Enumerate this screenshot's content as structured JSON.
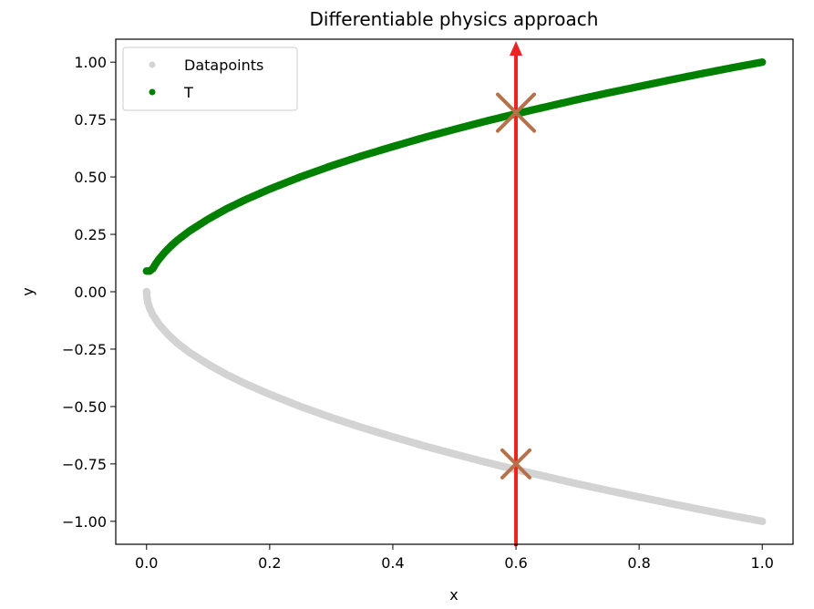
{
  "chart_data": {
    "type": "scatter",
    "title": "Differentiable physics approach",
    "xlabel": "x",
    "ylabel": "y",
    "xlim": [
      -0.05,
      1.05
    ],
    "ylim": [
      -1.1,
      1.1
    ],
    "xticks": [
      "0.0",
      "0.2",
      "0.4",
      "0.6",
      "0.8",
      "1.0"
    ],
    "yticks": [
      "1.00",
      "0.75",
      "0.50",
      "0.25",
      "0.00",
      "−0.25",
      "−0.50",
      "−0.75",
      "−1.00"
    ],
    "grid": false,
    "legend": {
      "placement": "top-left",
      "entries": [
        "Datapoints",
        "T"
      ]
    },
    "series": [
      {
        "name": "Datapoints",
        "color": "#d3d3d3",
        "x": [
          0,
          0.0005,
          0.002,
          0.005,
          0.01,
          0.02,
          0.035,
          0.05,
          0.07,
          0.1,
          0.13,
          0.16,
          0.2,
          0.25,
          0.3,
          0.35,
          0.4,
          0.45,
          0.5,
          0.55,
          0.6,
          0.65,
          0.7,
          0.75,
          0.8,
          0.85,
          0.9,
          0.95,
          1.0
        ],
        "y": [
          0,
          -0.022,
          -0.045,
          -0.071,
          -0.1,
          -0.141,
          -0.187,
          -0.224,
          -0.265,
          -0.316,
          -0.361,
          -0.4,
          -0.447,
          -0.5,
          -0.548,
          -0.592,
          -0.632,
          -0.671,
          -0.707,
          -0.742,
          -0.775,
          -0.806,
          -0.837,
          -0.866,
          -0.894,
          -0.922,
          -0.949,
          -0.975,
          -1.0
        ]
      },
      {
        "name": "T",
        "color": "#008000",
        "x": [
          0,
          0.005,
          0.01,
          0.015,
          0.02,
          0.03,
          0.04,
          0.05,
          0.07,
          0.1,
          0.13,
          0.16,
          0.2,
          0.25,
          0.3,
          0.35,
          0.4,
          0.45,
          0.5,
          0.55,
          0.6,
          0.65,
          0.7,
          0.75,
          0.8,
          0.85,
          0.9,
          0.95,
          1.0
        ],
        "y": [
          0.09,
          0.09,
          0.1,
          0.122,
          0.141,
          0.173,
          0.2,
          0.224,
          0.265,
          0.316,
          0.361,
          0.4,
          0.447,
          0.5,
          0.548,
          0.592,
          0.632,
          0.671,
          0.707,
          0.742,
          0.775,
          0.806,
          0.837,
          0.866,
          0.894,
          0.922,
          0.949,
          0.975,
          1.0
        ]
      }
    ],
    "annotations": {
      "vertical_arrow": {
        "x": 0.6,
        "color": "#ee2222"
      },
      "crosses": [
        {
          "x": 0.6,
          "y": 0.78,
          "size": "large",
          "color": "#b5714a"
        },
        {
          "x": 0.6,
          "y": -0.75,
          "size": "small",
          "color": "#b5714a"
        }
      ]
    }
  }
}
